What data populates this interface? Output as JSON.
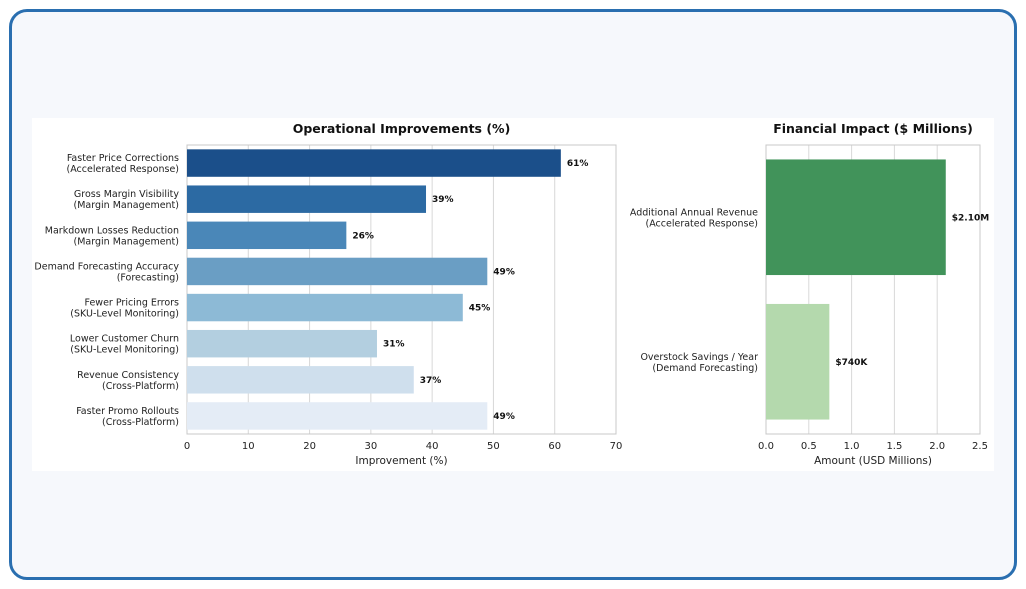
{
  "chart_data": [
    {
      "type": "bar",
      "orientation": "horizontal",
      "title": "Operational Improvements (%)",
      "xlabel": "Improvement (%)",
      "ylabel": "",
      "xlim": [
        0,
        70
      ],
      "xticks": [
        0,
        10,
        20,
        30,
        40,
        50,
        60,
        70
      ],
      "grid": true,
      "categories": [
        [
          "Faster Price Corrections",
          "(Accelerated Response)"
        ],
        [
          "Gross Margin Visibility",
          "(Margin Management)"
        ],
        [
          "Markdown Losses Reduction",
          "(Margin Management)"
        ],
        [
          "Demand Forecasting Accuracy",
          "(Forecasting)"
        ],
        [
          "Fewer Pricing Errors",
          "(SKU-Level Monitoring)"
        ],
        [
          "Lower Customer Churn",
          "(SKU-Level Monitoring)"
        ],
        [
          "Revenue Consistency",
          "(Cross-Platform)"
        ],
        [
          "Faster Promo Rollouts",
          "(Cross-Platform)"
        ]
      ],
      "values": [
        61,
        39,
        26,
        49,
        45,
        31,
        37,
        49
      ],
      "data_labels": [
        "61%",
        "39%",
        "26%",
        "49%",
        "45%",
        "31%",
        "37%",
        "49%"
      ],
      "colors": [
        "#1b4f8a",
        "#2c6aa3",
        "#4a87b8",
        "#6a9ec4",
        "#8dbad6",
        "#b3cfe0",
        "#cfdfed",
        "#e4ecf6"
      ]
    },
    {
      "type": "bar",
      "orientation": "horizontal",
      "title": "Financial Impact ($ Millions)",
      "xlabel": "Amount (USD Millions)",
      "ylabel": "",
      "xlim": [
        0,
        2.5
      ],
      "xticks": [
        "0.0",
        "0.5",
        "1.0",
        "1.5",
        "2.0",
        "2.5"
      ],
      "grid": true,
      "categories": [
        [
          "Additional Annual Revenue",
          "(Accelerated Response)"
        ],
        [
          "Overstock Savings / Year",
          "(Demand Forecasting)"
        ]
      ],
      "values": [
        2.1,
        0.74
      ],
      "data_labels": [
        "$2.10M",
        "$740K"
      ],
      "colors": [
        "#41935a",
        "#b4d9ad"
      ]
    }
  ]
}
